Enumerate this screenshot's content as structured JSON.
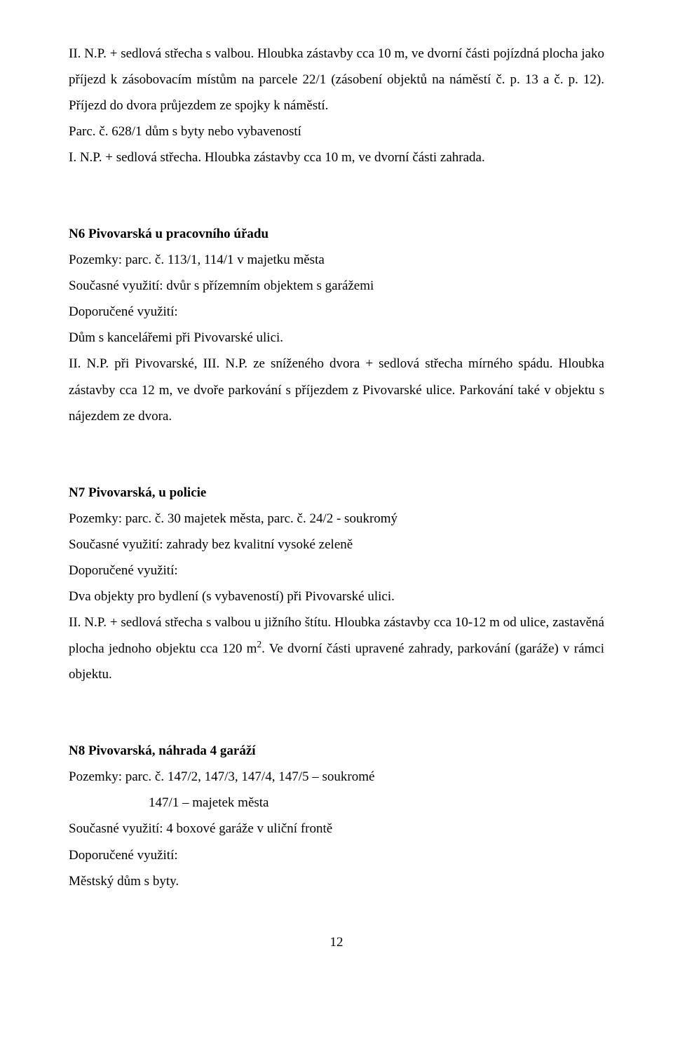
{
  "intro": {
    "p1_a": "II. N.P. + sedlová střecha s valbou. Hloubka zástavby cca 10 m, ve dvorní části pojízdná plocha jako příjezd k zásobovacím místům na parcele 22/1 (zásobení objektů na náměstí č. p. 13 a č. p. 12). Příjezd do dvora průjezdem ze spojky k náměstí.",
    "p2": "Parc. č. 628/1 dům s byty nebo vybaveností",
    "p3": "I. N.P. + sedlová střecha. Hloubka zástavby cca 10 m, ve dvorní části zahrada."
  },
  "n6": {
    "heading": "N6   Pivovarská u pracovního úřadu",
    "l1": "Pozemky: parc. č. 113/1, 114/1 v majetku města",
    "l2": "Současné využití: dvůr s přízemním objektem s garážemi",
    "l3": "Doporučené využití:",
    "l4": "Dům s kancelářemi při Pivovarské ulici.",
    "l5": "II. N.P. při Pivovarské, III. N.P. ze sníženého dvora + sedlová střecha mírného spádu. Hloubka zástavby cca 12 m, ve dvoře parkování s příjezdem z Pivovarské ulice. Parkování také v objektu s nájezdem ze dvora."
  },
  "n7": {
    "heading": "N7   Pivovarská, u policie",
    "l1": "Pozemky: parc. č. 30 majetek města, parc. č. 24/2 - soukromý",
    "l2": "Současné využití: zahrady bez kvalitní vysoké zeleně",
    "l3": "Doporučené využití:",
    "l4": "Dva objekty pro bydlení (s vybaveností) při Pivovarské ulici.",
    "l5a": "II. N.P. + sedlová střecha s valbou u jižního štítu. Hloubka zástavby cca 10-12 m od ulice, zastavěná plocha jednoho objektu cca 120 m",
    "l5b": ". Ve dvorní části upravené zahrady, parkování (garáže) v rámci objektu."
  },
  "n8": {
    "heading": "N8   Pivovarská, náhrada 4 garáží",
    "l1": "Pozemky: parc. č. 147/2, 147/3, 147/4, 147/5 – soukromé",
    "l2": "147/1 – majetek města",
    "l3": "Současné využití: 4 boxové garáže v uliční frontě",
    "l4": "Doporučené využití:",
    "l5": "Městský dům s byty."
  },
  "pagenum": "12"
}
